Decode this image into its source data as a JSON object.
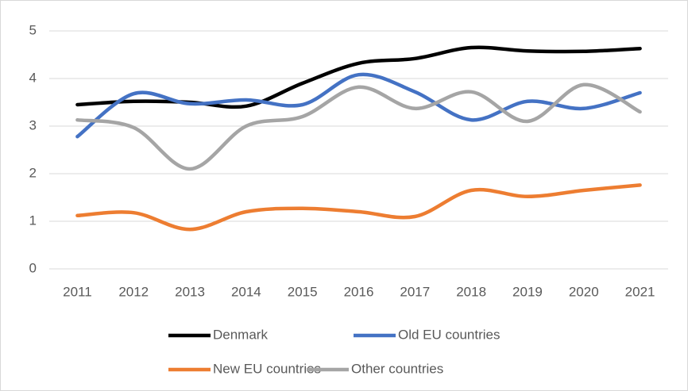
{
  "chart_data": {
    "type": "line",
    "categories": [
      "2011",
      "2012",
      "2013",
      "2014",
      "2015",
      "2016",
      "2017",
      "2018",
      "2019",
      "2020",
      "2021"
    ],
    "series": [
      {
        "name": "Denmark",
        "color": "#000000",
        "values": [
          3.45,
          3.52,
          3.5,
          3.42,
          3.9,
          4.32,
          4.42,
          4.65,
          4.58,
          4.57,
          4.63
        ]
      },
      {
        "name": "Old EU countries",
        "color": "#4472c4",
        "values": [
          2.78,
          3.68,
          3.47,
          3.55,
          3.45,
          4.08,
          3.72,
          3.13,
          3.52,
          3.37,
          3.7
        ]
      },
      {
        "name": "New EU countries",
        "color": "#ed7d31",
        "values": [
          1.12,
          1.18,
          0.83,
          1.2,
          1.27,
          1.2,
          1.1,
          1.65,
          1.52,
          1.65,
          1.76
        ]
      },
      {
        "name": "Other countries",
        "color": "#a5a5a5",
        "values": [
          3.13,
          2.97,
          2.1,
          3.0,
          3.2,
          3.82,
          3.37,
          3.72,
          3.1,
          3.87,
          3.3
        ]
      }
    ],
    "ylim": [
      0,
      5
    ],
    "yticks": [
      0,
      1,
      2,
      3,
      4,
      5
    ],
    "grid": true,
    "smooth": true,
    "legend": "bottom"
  }
}
